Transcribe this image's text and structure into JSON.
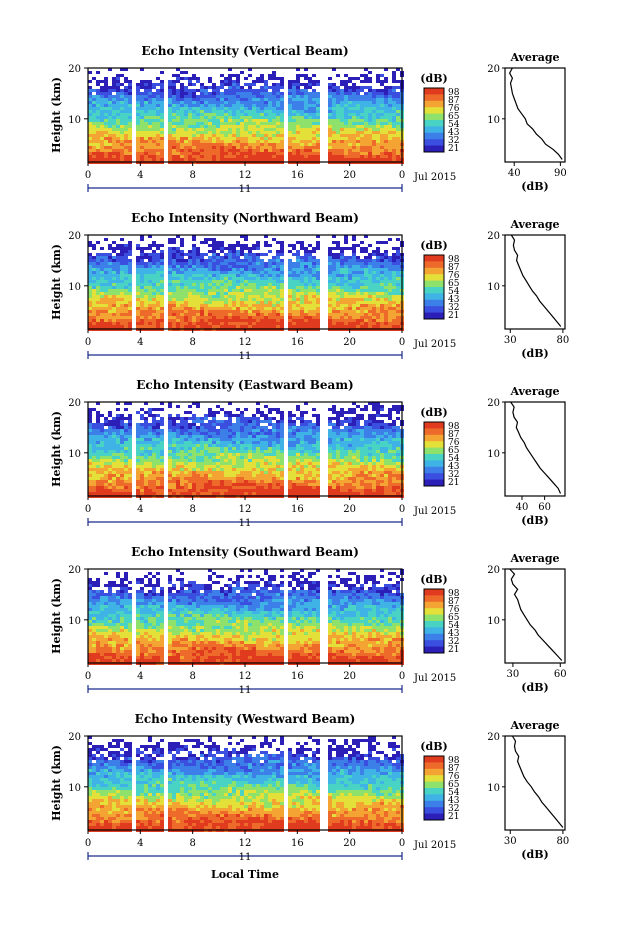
{
  "chart_data": [
    {
      "type": "heatmap",
      "title": "Echo Intensity (Vertical Beam)",
      "ylabel": "Height (km)",
      "xticks": [
        "0",
        "4",
        "8",
        "12",
        "16",
        "20",
        "0"
      ],
      "yticks": [
        "20",
        "10"
      ],
      "date_label": "11",
      "month_label": "Jul 2015",
      "xlim": [
        0,
        24
      ],
      "ylim": [
        1.5,
        20
      ],
      "colorbar": {
        "title": "(dB)",
        "levels": [
          "98",
          "87",
          "76",
          "65",
          "54",
          "43",
          "32",
          "21"
        ]
      },
      "gaps_hours": [
        [
          3.2,
          3.6
        ],
        [
          5.2,
          5.5
        ],
        [
          5.8,
          6.1
        ],
        [
          14.8,
          15.2
        ],
        [
          17.7,
          18.1
        ]
      ],
      "avg_profile": {
        "title": "Average",
        "xlabel": "(dB)",
        "xticks": [
          "40",
          "90"
        ],
        "xlim": [
          30,
          95
        ],
        "height_km": [
          2,
          3,
          4,
          5,
          6,
          7,
          8,
          9,
          10,
          11,
          12,
          13,
          14,
          15,
          16,
          17,
          18,
          19,
          20
        ],
        "values_db": [
          92,
          88,
          82,
          74,
          70,
          64,
          60,
          54,
          52,
          48,
          44,
          42,
          40,
          38,
          37,
          36,
          38,
          35,
          38
        ]
      }
    },
    {
      "type": "heatmap",
      "title": "Echo Intensity (Northward Beam)",
      "ylabel": "Height (km)",
      "xticks": [
        "0",
        "4",
        "8",
        "12",
        "16",
        "20",
        "0"
      ],
      "yticks": [
        "20",
        "10"
      ],
      "date_label": "11",
      "month_label": "Jul 2015",
      "xlim": [
        0,
        24
      ],
      "ylim": [
        1.5,
        20
      ],
      "colorbar": {
        "title": "(dB)",
        "levels": [
          "98",
          "87",
          "76",
          "65",
          "54",
          "43",
          "32",
          "21"
        ]
      },
      "gaps_hours": [
        [
          3.2,
          3.6
        ],
        [
          5.2,
          5.5
        ],
        [
          5.8,
          6.1
        ],
        [
          14.8,
          15.2
        ],
        [
          17.7,
          18.1
        ]
      ],
      "avg_profile": {
        "title": "Average",
        "xlabel": "(dB)",
        "xticks": [
          "30",
          "80"
        ],
        "xlim": [
          25,
          82
        ],
        "height_km": [
          2,
          3,
          4,
          5,
          6,
          7,
          8,
          9,
          10,
          11,
          12,
          13,
          14,
          15,
          16,
          17,
          18,
          19,
          20
        ],
        "values_db": [
          78,
          74,
          70,
          66,
          62,
          58,
          55,
          51,
          48,
          45,
          42,
          40,
          38,
          36,
          37,
          34,
          33,
          34,
          31
        ]
      }
    },
    {
      "type": "heatmap",
      "title": "Echo Intensity (Eastward Beam)",
      "ylabel": "Height (km)",
      "xticks": [
        "0",
        "4",
        "8",
        "12",
        "16",
        "20",
        "0"
      ],
      "yticks": [
        "20",
        "10"
      ],
      "date_label": "11",
      "month_label": "Jul 2015",
      "xlim": [
        0,
        24
      ],
      "ylim": [
        1.5,
        20
      ],
      "colorbar": {
        "title": "(dB)",
        "levels": [
          "98",
          "87",
          "76",
          "65",
          "54",
          "43",
          "32",
          "21"
        ]
      },
      "gaps_hours": [
        [
          3.2,
          3.6
        ],
        [
          5.2,
          5.5
        ],
        [
          5.8,
          6.1
        ],
        [
          14.8,
          15.2
        ],
        [
          17.7,
          18.1
        ]
      ],
      "avg_profile": {
        "title": "Average",
        "xlabel": "(dB)",
        "xticks": [
          "40",
          "60"
        ],
        "xlim": [
          25,
          78
        ],
        "height_km": [
          2,
          3,
          4,
          5,
          6,
          7,
          8,
          9,
          10,
          11,
          12,
          13,
          14,
          15,
          16,
          17,
          18,
          19,
          20
        ],
        "values_db": [
          74,
          72,
          68,
          64,
          60,
          56,
          53,
          50,
          47,
          44,
          42,
          39,
          37,
          35,
          36,
          33,
          32,
          33,
          30
        ]
      }
    },
    {
      "type": "heatmap",
      "title": "Echo Intensity (Southward Beam)",
      "ylabel": "Height (km)",
      "xticks": [
        "0",
        "4",
        "8",
        "12",
        "16",
        "20",
        "0"
      ],
      "yticks": [
        "20",
        "10"
      ],
      "date_label": "11",
      "month_label": "Jul 2015",
      "xlim": [
        0,
        24
      ],
      "ylim": [
        1.5,
        20
      ],
      "colorbar": {
        "title": "(dB)",
        "levels": [
          "98",
          "87",
          "76",
          "65",
          "54",
          "43",
          "32",
          "21"
        ]
      },
      "gaps_hours": [
        [
          3.2,
          3.6
        ],
        [
          5.2,
          5.5
        ],
        [
          5.8,
          6.1
        ],
        [
          14.8,
          15.2
        ],
        [
          17.7,
          18.1
        ]
      ],
      "avg_profile": {
        "title": "Average",
        "xlabel": "(dB)",
        "xticks": [
          "30",
          "60"
        ],
        "xlim": [
          25,
          63
        ],
        "height_km": [
          2,
          3,
          4,
          5,
          6,
          7,
          8,
          9,
          10,
          11,
          12,
          13,
          14,
          15,
          16,
          17,
          18,
          19,
          20
        ],
        "values_db": [
          61,
          58,
          55,
          52,
          49,
          46,
          44,
          41,
          39,
          37,
          35,
          34,
          33,
          31,
          33,
          30,
          29,
          31,
          28
        ]
      }
    },
    {
      "type": "heatmap",
      "title": "Echo Intensity (Westward Beam)",
      "ylabel": "Height (km)",
      "xticks": [
        "0",
        "4",
        "8",
        "12",
        "16",
        "20",
        "0"
      ],
      "yticks": [
        "20",
        "10"
      ],
      "date_label": "11",
      "month_label": "Jul 2015",
      "xlabel": "Local Time",
      "xlim": [
        0,
        24
      ],
      "ylim": [
        1.5,
        20
      ],
      "colorbar": {
        "title": "(dB)",
        "levels": [
          "98",
          "87",
          "76",
          "65",
          "54",
          "43",
          "32",
          "21"
        ]
      },
      "gaps_hours": [
        [
          3.2,
          3.6
        ],
        [
          5.2,
          5.5
        ],
        [
          5.8,
          6.1
        ],
        [
          14.8,
          15.2
        ],
        [
          17.7,
          18.1
        ]
      ],
      "avg_profile": {
        "title": "Average",
        "xlabel": "(dB)",
        "xticks": [
          "30",
          "80"
        ],
        "xlim": [
          25,
          82
        ],
        "height_km": [
          2,
          3,
          4,
          5,
          6,
          7,
          8,
          9,
          10,
          11,
          12,
          13,
          14,
          15,
          16,
          17,
          18,
          19,
          20
        ],
        "values_db": [
          80,
          76,
          72,
          68,
          64,
          60,
          57,
          53,
          50,
          46,
          43,
          41,
          39,
          37,
          38,
          35,
          34,
          35,
          32
        ]
      }
    }
  ]
}
